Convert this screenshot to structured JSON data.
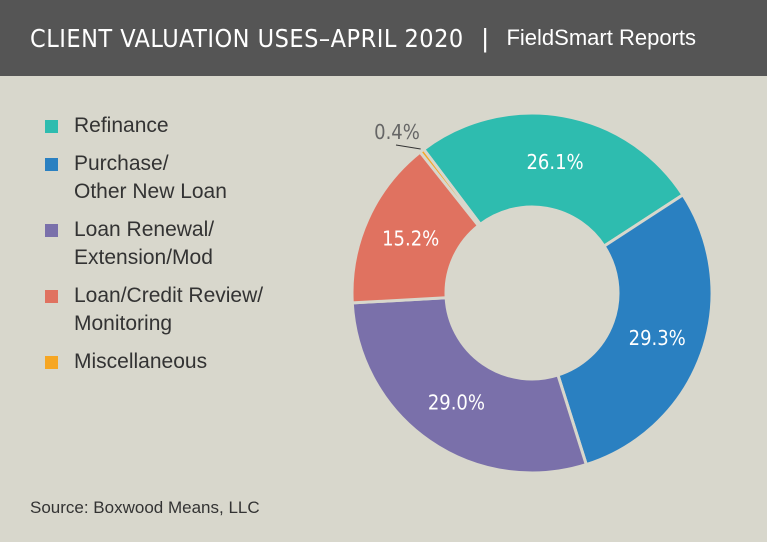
{
  "header": {
    "title": "CLIENT VALUATION USES–APRIL 2020",
    "separator": "|",
    "brand": "FieldSmart Reports"
  },
  "source": "Source: Boxwood Means, LLC",
  "chart_data": {
    "type": "pie",
    "donut": true,
    "title": "CLIENT VALUATION USES–APRIL 2020",
    "legend_position": "left",
    "categories": [
      "Refinance",
      "Purchase/\nOther New Loan",
      "Loan Renewal/\nExtension/Mod",
      "Loan/Credit Review/\nMonitoring",
      "Miscellaneous"
    ],
    "values": [
      26.1,
      29.3,
      29.0,
      15.2,
      0.4
    ],
    "data_labels": [
      "26.1%",
      "29.3%",
      "29.0%",
      "15.2%",
      "0.4%"
    ],
    "colors": [
      "#2ebcaf",
      "#2a80c1",
      "#7a70aa",
      "#e07260",
      "#f6a623"
    ]
  }
}
